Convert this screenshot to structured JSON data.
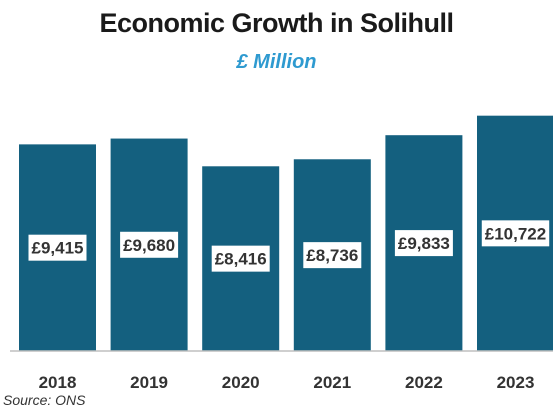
{
  "chart_data": {
    "type": "bar",
    "title": "Economic Growth in Solihull",
    "subtitle": "£ Million",
    "categories": [
      "2018",
      "2019",
      "2020",
      "2021",
      "2022",
      "2023"
    ],
    "values": [
      9415,
      9680,
      8416,
      8736,
      9833,
      10722
    ],
    "data_labels": [
      "£9,415",
      "£9,680",
      "£8,416",
      "£8,736",
      "£9,833",
      "£10,722"
    ],
    "xlabel": "",
    "ylabel": "",
    "ylim": [
      0,
      11300
    ],
    "grid": false,
    "legend": "none",
    "source": "Source: ONS"
  },
  "colors": {
    "bar": "#14607f",
    "subtitle": "#2e9ad0",
    "label_box": "#ffffff",
    "label_text": "#333333",
    "axis": "#bfbfbf",
    "tick_text": "#333333"
  }
}
